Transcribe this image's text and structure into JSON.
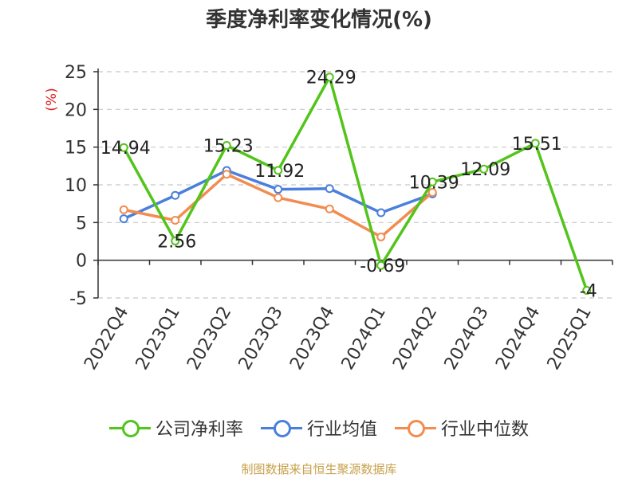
{
  "chart_data": {
    "type": "line",
    "title": "季度净利率变化情况(%)",
    "ylabel": "(%)",
    "xlabel": "",
    "ylim": [
      -5,
      25
    ],
    "yticks": [
      25,
      20,
      15,
      10,
      5,
      0,
      -5
    ],
    "grid": true,
    "legend_position": "bottom",
    "categories": [
      "2022Q4",
      "2023Q1",
      "2023Q2",
      "2023Q3",
      "2023Q4",
      "2024Q1",
      "2024Q2",
      "2024Q3",
      "2024Q4",
      "2025Q1"
    ],
    "series": [
      {
        "name": "公司净利率",
        "color": "#52c41a",
        "show_labels": true,
        "values": [
          14.94,
          2.56,
          15.23,
          11.92,
          24.29,
          -0.69,
          10.39,
          12.09,
          15.51,
          -4
        ]
      },
      {
        "name": "行业均值",
        "color": "#4a7fdb",
        "show_labels": false,
        "values": [
          5.5,
          8.6,
          11.9,
          9.4,
          9.5,
          6.3,
          8.8,
          null,
          null,
          null
        ]
      },
      {
        "name": "行业中位数",
        "color": "#f28c50",
        "show_labels": false,
        "values": [
          6.7,
          5.3,
          11.4,
          8.3,
          6.8,
          3.1,
          9.0,
          null,
          null,
          null
        ]
      }
    ]
  },
  "source_note": "制图数据来自恒生聚源数据库"
}
